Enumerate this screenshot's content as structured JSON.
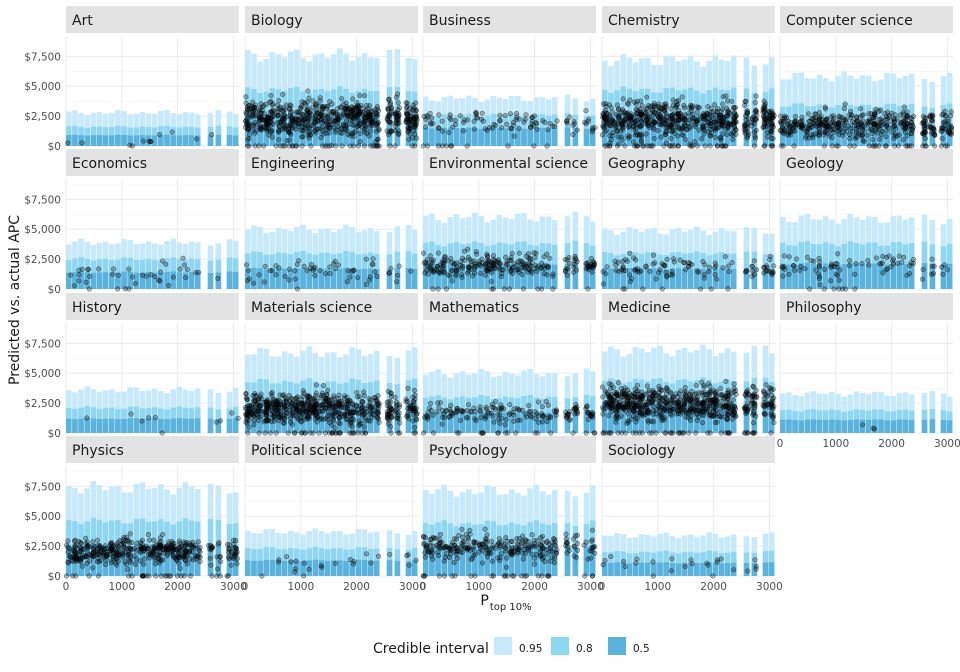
{
  "chart_data": {
    "type": "scatter",
    "layout": "facet-grid",
    "ylabel": "Predicted vs. actual APC",
    "xlabel_main": "P",
    "xlabel_sub": "top 10%",
    "xlim": [
      0,
      3100
    ],
    "ylim": [
      0,
      9200
    ],
    "x_ticks": [
      0,
      1000,
      2000,
      3000
    ],
    "x_tick_labels": [
      "0",
      "1000",
      "2000",
      "3000"
    ],
    "y_ticks": [
      0,
      2500,
      5000,
      7500
    ],
    "y_tick_labels": [
      "$0",
      "$2,500",
      "$5,000",
      "$7,500"
    ],
    "grid": true,
    "legend": {
      "title": "Credible interval",
      "position": "bottom",
      "entries": [
        {
          "label": "0.95",
          "color": "#c6e9fb"
        },
        {
          "label": "0.8",
          "color": "#8fd6f2"
        },
        {
          "label": "0.5",
          "color": "#5bb3dc"
        }
      ]
    },
    "panels": [
      {
        "name": "Art",
        "band95": 2800,
        "band80": 1600,
        "band50": 900,
        "center": 450,
        "points": 12,
        "spread": 700
      },
      {
        "name": "Biology",
        "band95": 7600,
        "band80": 4700,
        "band50": 2700,
        "center": 2300,
        "points": 700,
        "spread": 1300
      },
      {
        "name": "Business",
        "band95": 4000,
        "band80": 2600,
        "band50": 1500,
        "center": 2000,
        "points": 110,
        "spread": 900
      },
      {
        "name": "Chemistry",
        "band95": 7200,
        "band80": 4700,
        "band50": 2700,
        "center": 2200,
        "points": 650,
        "spread": 1300
      },
      {
        "name": "Computer science",
        "band95": 5800,
        "band80": 3400,
        "band50": 1900,
        "center": 1800,
        "points": 450,
        "spread": 1000
      },
      {
        "name": "Economics",
        "band95": 3900,
        "band80": 2500,
        "band50": 1400,
        "center": 1200,
        "points": 40,
        "spread": 900
      },
      {
        "name": "Engineering",
        "band95": 5000,
        "band80": 3000,
        "band50": 1700,
        "center": 1500,
        "points": 60,
        "spread": 800
      },
      {
        "name": "Environmental science",
        "band95": 6000,
        "band80": 3800,
        "band50": 2100,
        "center": 2000,
        "points": 260,
        "spread": 900
      },
      {
        "name": "Geography",
        "band95": 4900,
        "band80": 3000,
        "band50": 1700,
        "center": 1800,
        "points": 110,
        "spread": 900
      },
      {
        "name": "Geology",
        "band95": 5900,
        "band80": 3800,
        "band50": 2100,
        "center": 2000,
        "points": 90,
        "spread": 900
      },
      {
        "name": "History",
        "band95": 3600,
        "band80": 2100,
        "band50": 1200,
        "center": 1200,
        "points": 10,
        "spread": 700
      },
      {
        "name": "Materials science",
        "band95": 6700,
        "band80": 4300,
        "band50": 2400,
        "center": 2000,
        "points": 650,
        "spread": 1100
      },
      {
        "name": "Mathematics",
        "band95": 5000,
        "band80": 3000,
        "band50": 1700,
        "center": 1700,
        "points": 180,
        "spread": 700
      },
      {
        "name": "Medicine",
        "band95": 6900,
        "band80": 4400,
        "band50": 2500,
        "center": 2500,
        "points": 700,
        "spread": 1200
      },
      {
        "name": "Philosophy",
        "band95": 3300,
        "band80": 1900,
        "band50": 1100,
        "center": 500,
        "points": 3,
        "spread": 300
      },
      {
        "name": "Physics",
        "band95": 7400,
        "band80": 4600,
        "band50": 2600,
        "center": 2000,
        "points": 450,
        "spread": 900
      },
      {
        "name": "Political science",
        "band95": 3700,
        "band80": 2300,
        "band50": 1300,
        "center": 1200,
        "points": 25,
        "spread": 800
      },
      {
        "name": "Psychology",
        "band95": 7100,
        "band80": 4400,
        "band50": 2500,
        "center": 2400,
        "points": 300,
        "spread": 1000
      },
      {
        "name": "Sociology",
        "band95": 3400,
        "band80": 2000,
        "band50": 1100,
        "center": 1100,
        "points": 25,
        "spread": 700
      }
    ]
  }
}
